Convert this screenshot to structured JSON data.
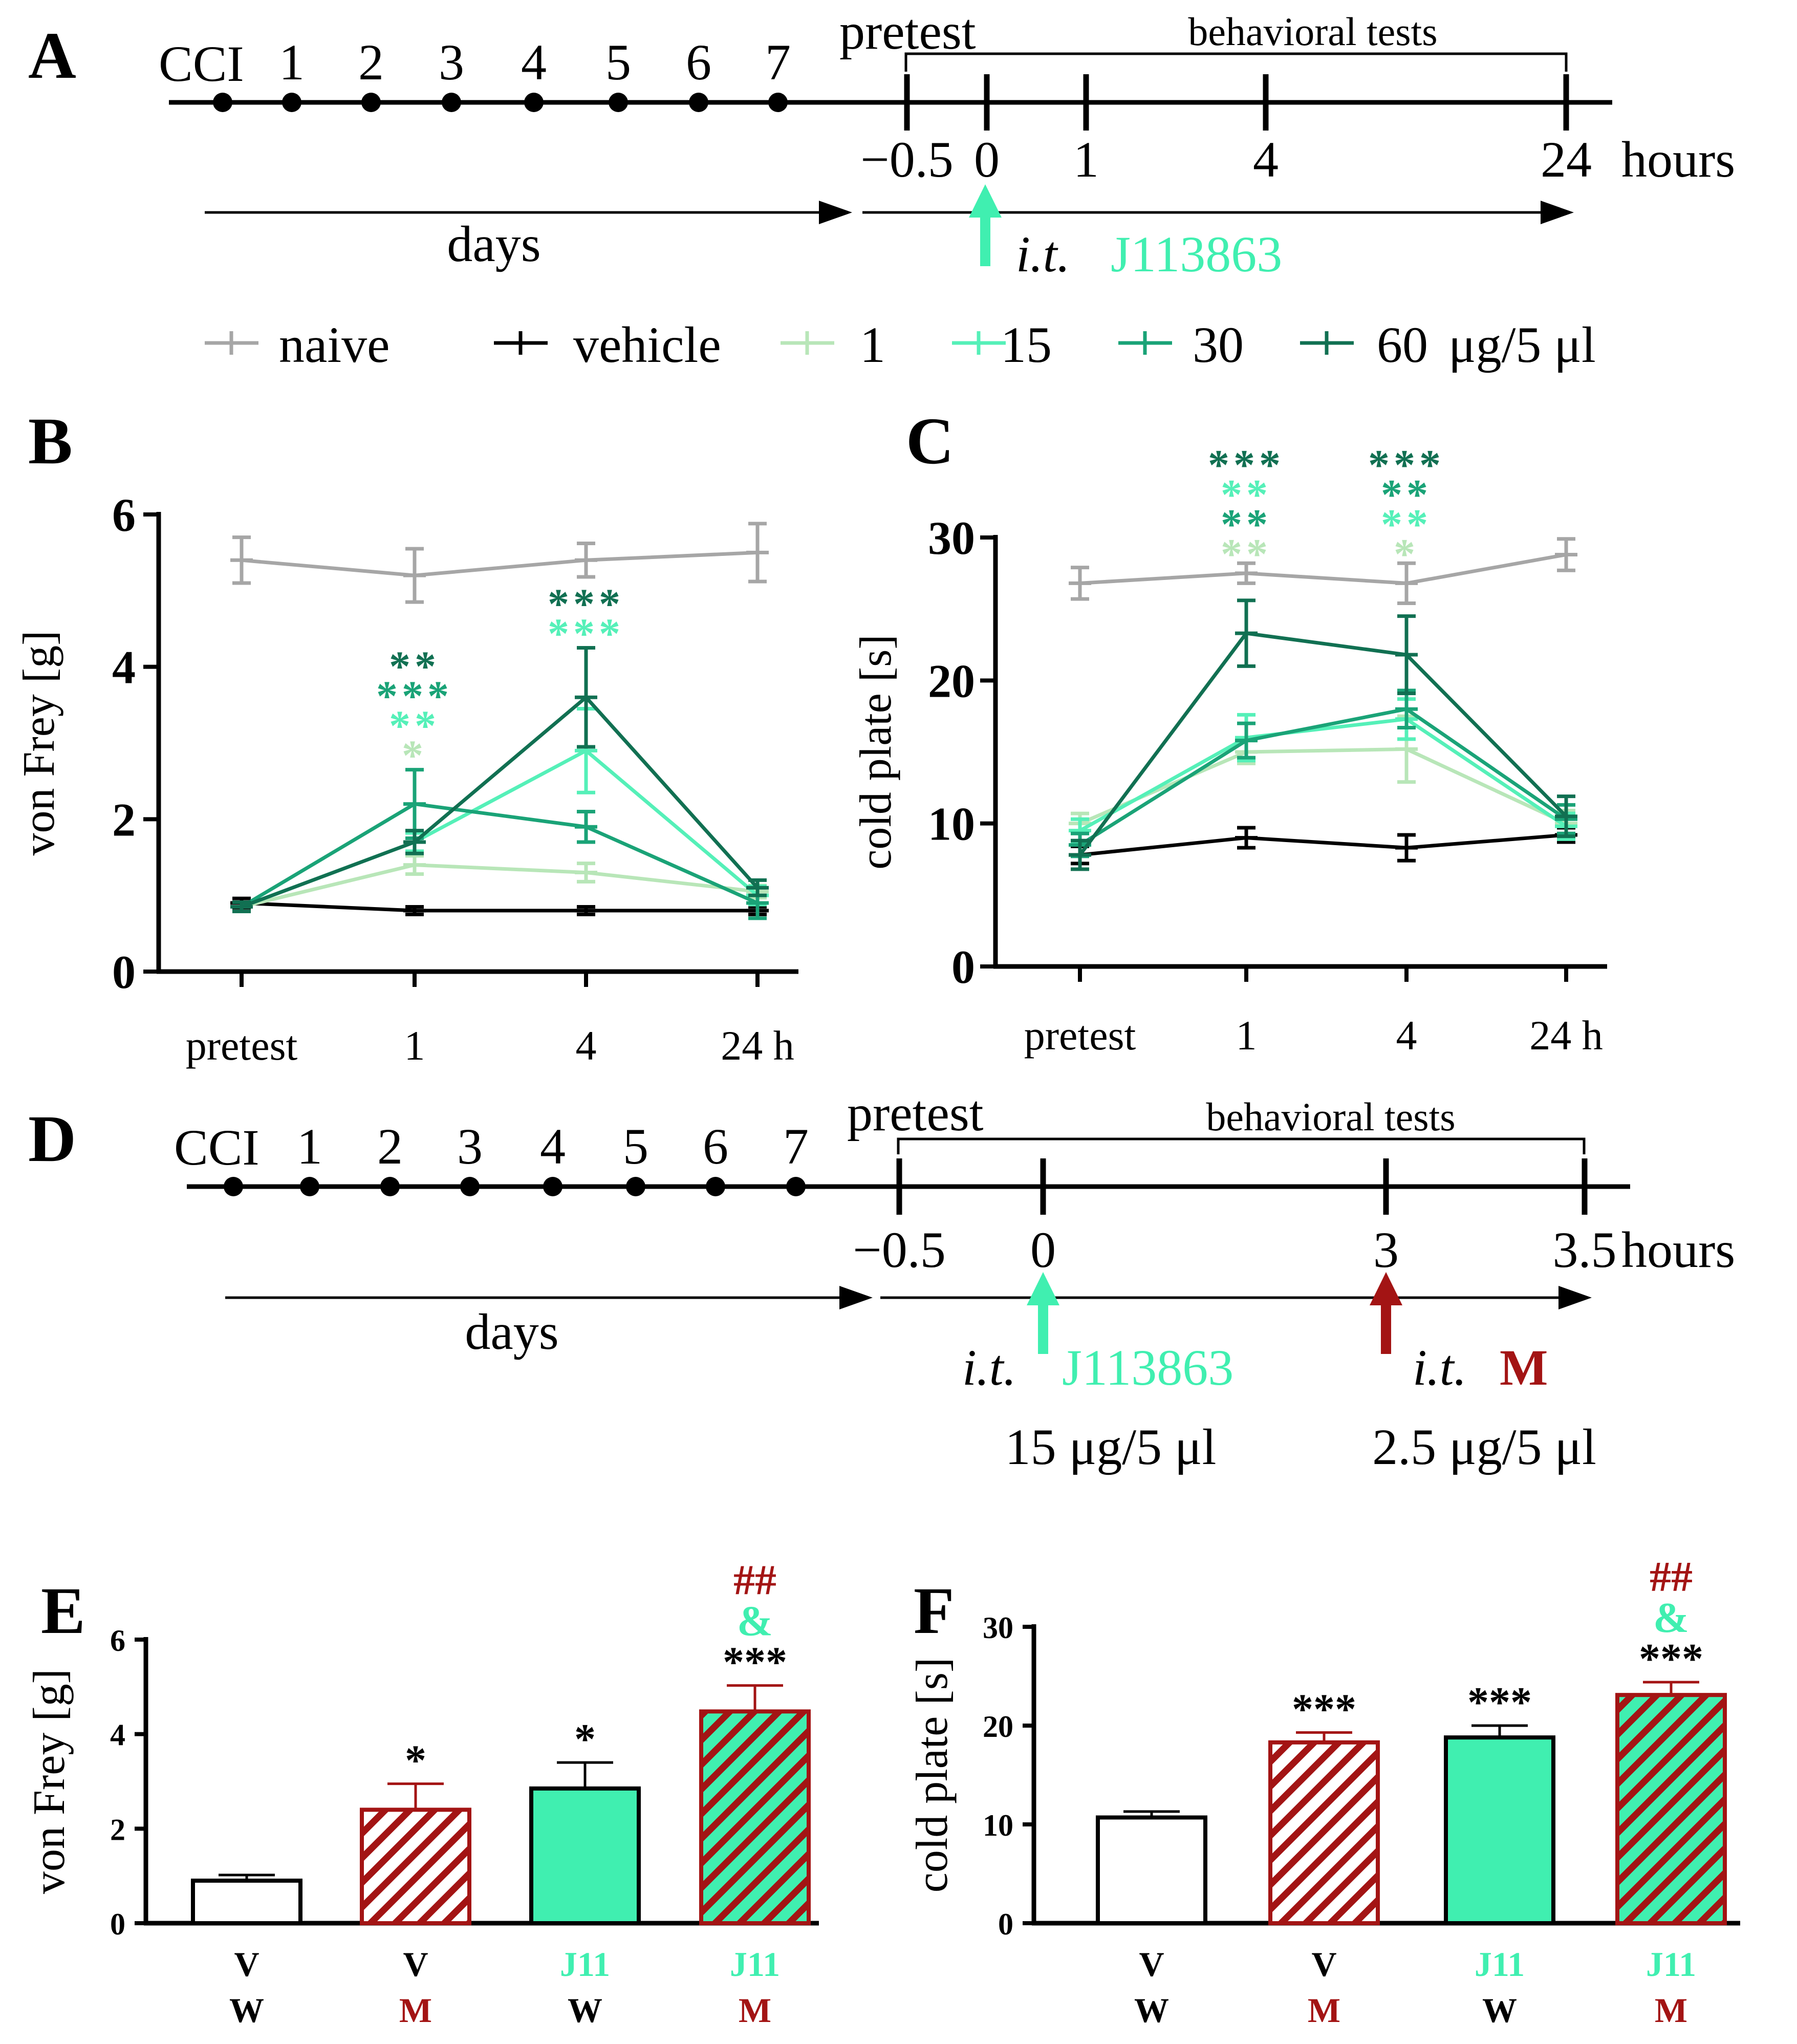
{
  "colors": {
    "naive": "#a6a6a6",
    "vehicle": "#000000",
    "d1": "#b8e6b8",
    "d15": "#55f0b8",
    "d30": "#1aa377",
    "d60": "#117052",
    "morphine": "#a31414",
    "j11": "#40efb0"
  },
  "panelA": {
    "letter": "A",
    "cci": "CCI",
    "days": [
      "1",
      "2",
      "3",
      "4",
      "5",
      "6",
      "7"
    ],
    "pretest": "pretest",
    "behavioral": "behavioral tests",
    "hours": [
      "−0.5",
      "0",
      "1",
      "4",
      "24"
    ],
    "hours_unit": "hours",
    "days_label": "days",
    "it": "i.t.",
    "drug": "J113863"
  },
  "legend": {
    "naive": "naive",
    "vehicle": "vehicle",
    "d1": "1",
    "d15": "15",
    "d30": "30",
    "d60": "60",
    "unit": "μg/5 μl"
  },
  "chart_data": [
    {
      "id": "B",
      "type": "line",
      "letter": "B",
      "ylabel": "von Frey [g]",
      "categories": [
        "pretest",
        "1",
        "4",
        "24 h"
      ],
      "ylim": [
        0,
        6
      ],
      "yticks": [
        "0",
        "2",
        "4",
        "6"
      ],
      "series": [
        {
          "name": "naive",
          "key": "naive",
          "values": [
            5.4,
            5.2,
            5.4,
            5.5
          ],
          "err": [
            0.3,
            0.35,
            0.22,
            0.38
          ]
        },
        {
          "name": "vehicle",
          "key": "vehicle",
          "values": [
            0.9,
            0.8,
            0.8,
            0.8
          ],
          "err": [
            0.06,
            0.05,
            0.05,
            0.05
          ]
        },
        {
          "name": "1",
          "key": "d1",
          "values": [
            0.85,
            1.4,
            1.3,
            1.05
          ],
          "err": [
            0.06,
            0.12,
            0.12,
            0.08
          ]
        },
        {
          "name": "15",
          "key": "d15",
          "values": [
            0.85,
            1.7,
            2.9,
            1.0
          ],
          "err": [
            0.06,
            0.12,
            0.55,
            0.12
          ]
        },
        {
          "name": "30",
          "key": "d30",
          "values": [
            0.85,
            2.2,
            1.9,
            0.9
          ],
          "err": [
            0.06,
            0.45,
            0.2,
            0.2
          ]
        },
        {
          "name": "60",
          "key": "d60",
          "values": [
            0.85,
            1.7,
            3.6,
            1.1
          ],
          "err": [
            0.06,
            0.15,
            0.65,
            0.1
          ]
        }
      ],
      "annotations": [
        {
          "x": "1",
          "rows": [
            {
              "text": "**",
              "key": "d60"
            },
            {
              "text": "***",
              "key": "d30"
            },
            {
              "text": "**",
              "key": "d15"
            },
            {
              "text": "*",
              "key": "d1"
            }
          ]
        },
        {
          "x": "4",
          "rows": [
            {
              "text": "***",
              "key": "d60"
            },
            {
              "text": "***",
              "key": "d15"
            }
          ]
        }
      ]
    },
    {
      "id": "C",
      "type": "line",
      "letter": "C",
      "ylabel": "cold plate [s]",
      "categories": [
        "pretest",
        "1",
        "4",
        "24 h"
      ],
      "ylim": [
        0,
        30
      ],
      "yticks": [
        "0",
        "10",
        "20",
        "30"
      ],
      "series": [
        {
          "name": "naive",
          "key": "naive",
          "values": [
            26.8,
            27.5,
            26.8,
            28.8
          ],
          "err": [
            1.1,
            0.7,
            1.4,
            1.1
          ]
        },
        {
          "name": "vehicle",
          "key": "vehicle",
          "values": [
            7.8,
            9.0,
            8.3,
            9.2
          ],
          "err": [
            0.6,
            0.7,
            0.9,
            0.5
          ]
        },
        {
          "name": "1",
          "key": "d1",
          "values": [
            10.0,
            15.0,
            15.2,
            10.0
          ],
          "err": [
            0.7,
            0.8,
            2.3,
            0.9
          ]
        },
        {
          "name": "15",
          "key": "d15",
          "values": [
            9.5,
            16.0,
            17.3,
            9.8
          ],
          "err": [
            0.8,
            1.6,
            1.4,
            0.9
          ]
        },
        {
          "name": "30",
          "key": "d30",
          "values": [
            8.5,
            15.8,
            18.0,
            10.3
          ],
          "err": [
            0.8,
            1.2,
            1.3,
            1.0
          ]
        },
        {
          "name": "60",
          "key": "d60",
          "values": [
            7.8,
            23.3,
            21.8,
            10.5
          ],
          "err": [
            1.0,
            2.3,
            2.7,
            1.4
          ]
        }
      ],
      "annotations": [
        {
          "x": "1",
          "rows": [
            {
              "text": "***",
              "key": "d60"
            },
            {
              "text": "**",
              "key": "d15"
            },
            {
              "text": "**",
              "key": "d30"
            },
            {
              "text": "**",
              "key": "d1"
            }
          ]
        },
        {
          "x": "4",
          "rows": [
            {
              "text": "***",
              "key": "d60"
            },
            {
              "text": "**",
              "key": "d30"
            },
            {
              "text": "**",
              "key": "d15"
            },
            {
              "text": "*",
              "key": "d1"
            }
          ]
        }
      ]
    },
    {
      "id": "E",
      "type": "bar",
      "letter": "E",
      "ylabel": "von Frey [g]",
      "ylim": [
        0,
        6
      ],
      "yticks": [
        "0",
        "2",
        "4",
        "6"
      ],
      "categories": [
        {
          "top": "V",
          "bottom": "W",
          "top_key": "vehicle",
          "bottom_key": "vehicle",
          "style": "white"
        },
        {
          "top": "V",
          "bottom": "M",
          "top_key": "vehicle",
          "bottom_key": "morphine",
          "style": "hatch-red"
        },
        {
          "top": "J11",
          "bottom": "W",
          "top_key": "j11",
          "bottom_key": "vehicle",
          "style": "j11"
        },
        {
          "top": "J11",
          "bottom": "M",
          "top_key": "j11",
          "bottom_key": "morphine",
          "style": "hatch-green"
        }
      ],
      "values": [
        0.9,
        2.4,
        2.85,
        4.48
      ],
      "err": [
        0.12,
        0.55,
        0.55,
        0.55
      ],
      "annotations": [
        [],
        [
          {
            "text": "*",
            "key": "vehicle"
          }
        ],
        [
          {
            "text": "*",
            "key": "vehicle"
          }
        ],
        [
          {
            "text": "##",
            "key": "morphine"
          },
          {
            "text": "&",
            "key": "j11"
          },
          {
            "text": "***",
            "key": "vehicle"
          }
        ]
      ]
    },
    {
      "id": "F",
      "type": "bar",
      "letter": "F",
      "ylabel": "cold plate [s]",
      "ylim": [
        0,
        30
      ],
      "yticks": [
        "0",
        "10",
        "20",
        "30"
      ],
      "categories": [
        {
          "top": "V",
          "bottom": "W",
          "top_key": "vehicle",
          "bottom_key": "vehicle",
          "style": "white"
        },
        {
          "top": "V",
          "bottom": "M",
          "top_key": "vehicle",
          "bottom_key": "morphine",
          "style": "hatch-red"
        },
        {
          "top": "J11",
          "bottom": "W",
          "top_key": "j11",
          "bottom_key": "vehicle",
          "style": "j11"
        },
        {
          "top": "J11",
          "bottom": "M",
          "top_key": "j11",
          "bottom_key": "morphine",
          "style": "hatch-green"
        }
      ],
      "values": [
        10.7,
        18.3,
        18.8,
        23.1
      ],
      "err": [
        0.6,
        1.0,
        1.2,
        1.3
      ],
      "annotations": [
        [],
        [
          {
            "text": "***",
            "key": "vehicle"
          }
        ],
        [
          {
            "text": "***",
            "key": "vehicle"
          }
        ],
        [
          {
            "text": "##",
            "key": "morphine"
          },
          {
            "text": "&",
            "key": "j11"
          },
          {
            "text": "***",
            "key": "vehicle"
          }
        ]
      ]
    }
  ],
  "panelD": {
    "letter": "D",
    "cci": "CCI",
    "days": [
      "1",
      "2",
      "3",
      "4",
      "5",
      "6",
      "7"
    ],
    "pretest": "pretest",
    "behavioral": "behavioral tests",
    "hours": [
      "−0.5",
      "0",
      "3",
      "3.5"
    ],
    "hours_unit": "hours",
    "days_label": "days",
    "it1": "i.t.",
    "drug1": "J113863",
    "dose1": "15 μg/5 μl",
    "it2": "i.t.",
    "drug2": "M",
    "dose2": "2.5 μg/5 μl"
  }
}
